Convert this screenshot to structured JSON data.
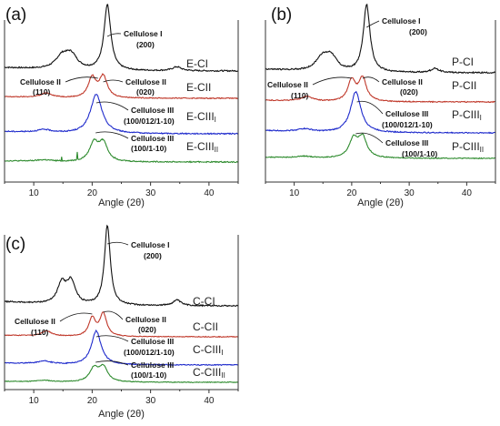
{
  "colors": {
    "CI": "#111111",
    "CII": "#c0392b",
    "CIIIi": "#1f2bcc",
    "CIIIii": "#2e8b2e",
    "axis": "#333333"
  },
  "chart_data": [
    {
      "type": "line",
      "panel": "(a)",
      "xlabel": "Angle (2θ)",
      "xlim": [
        5,
        45
      ],
      "xticks": [
        10,
        20,
        30,
        40
      ],
      "series": [
        {
          "name": "E-CI",
          "name_sub": "",
          "color_key": "CI",
          "peaks": [
            [
              14.8,
              0.18,
              1.3
            ],
            [
              16.4,
              0.22,
              1.3
            ],
            [
              22.6,
              1.0,
              0.7
            ],
            [
              34.5,
              0.06,
              0.9
            ]
          ],
          "baseline_left": 0.05,
          "noise": 0.01
        },
        {
          "name": "E-CII",
          "name_sub": "",
          "color_key": "CII",
          "peaks": [
            [
              12.2,
              0.12,
              1.2
            ],
            [
              20.0,
              0.55,
              0.8
            ],
            [
              21.9,
              0.58,
              0.8
            ]
          ],
          "baseline_left": 0.04,
          "noise": 0.012
        },
        {
          "name": "E-CIII",
          "name_sub": "I",
          "color_key": "CIIIi",
          "peaks": [
            [
              11.8,
              0.05,
              1.5
            ],
            [
              20.7,
              0.72,
              1.2
            ]
          ],
          "baseline_left": 0.04,
          "noise": 0.01
        },
        {
          "name": "E-CIII",
          "name_sub": "II",
          "color_key": "CIIIii",
          "peaks": [
            [
              11.8,
              0.04,
              1.5
            ],
            [
              20.3,
              0.5,
              0.9
            ],
            [
              21.9,
              0.5,
              0.9
            ]
          ],
          "baseline_left": 0.03,
          "noise": 0.015,
          "spikes": [
            [
              17.4,
              0.22
            ],
            [
              14.8,
              0.1
            ]
          ]
        }
      ],
      "annotations": [
        {
          "text": "Cellulose I",
          "text2": "(200)"
        },
        {
          "text": "Cellulose II",
          "text2": "(020)"
        },
        {
          "text": "Cellulose II",
          "text2": "(110)"
        },
        {
          "text": "Cellulose III",
          "text2": "(100/012/1-10)"
        },
        {
          "text": "Cellulose III",
          "text2": "(100/1-10)"
        }
      ]
    },
    {
      "type": "line",
      "panel": "(b)",
      "xlabel": "Angle (2θ)",
      "xlim": [
        5,
        45
      ],
      "xticks": [
        10,
        20,
        30,
        40
      ],
      "series": [
        {
          "name": "P-CI",
          "name_sub": "",
          "color_key": "CI",
          "peaks": [
            [
              14.8,
              0.18,
              1.3
            ],
            [
              16.4,
              0.22,
              1.3
            ],
            [
              22.6,
              1.0,
              0.7
            ],
            [
              34.5,
              0.06,
              0.9
            ]
          ],
          "baseline_left": 0.05,
          "noise": 0.01
        },
        {
          "name": "P-CII",
          "name_sub": "",
          "color_key": "CII",
          "peaks": [
            [
              12.2,
              0.12,
              1.2
            ],
            [
              20.0,
              0.55,
              0.8
            ],
            [
              21.9,
              0.6,
              0.8
            ]
          ],
          "baseline_left": 0.04,
          "noise": 0.012
        },
        {
          "name": "P-CIII",
          "name_sub": "I",
          "color_key": "CIIIi",
          "peaks": [
            [
              11.8,
              0.05,
              1.5
            ],
            [
              20.7,
              0.75,
              1.1
            ]
          ],
          "baseline_left": 0.04,
          "noise": 0.01
        },
        {
          "name": "P-CIII",
          "name_sub": "II",
          "color_key": "CIIIii",
          "peaks": [
            [
              11.8,
              0.04,
              1.5
            ],
            [
              20.3,
              0.5,
              0.9
            ],
            [
              21.9,
              0.55,
              0.9
            ]
          ],
          "baseline_left": 0.03,
          "noise": 0.012
        }
      ],
      "annotations": [
        {
          "text": "Cellulose I",
          "text2": "(200)"
        },
        {
          "text": "Cellulose II",
          "text2": "(020)"
        },
        {
          "text": "Cellulose II",
          "text2": "(110)"
        },
        {
          "text": "Cellulose III",
          "text2": "(100/012/1-10)"
        },
        {
          "text": "Cellulose III",
          "text2": "(100/1-10)"
        }
      ]
    },
    {
      "type": "line",
      "panel": "(c)",
      "xlabel": "Angle (2θ)",
      "xlim": [
        5,
        45
      ],
      "xticks": [
        10,
        20,
        30,
        40
      ],
      "series": [
        {
          "name": "C-CI",
          "name_sub": "",
          "color_key": "CI",
          "peaks": [
            [
              14.8,
              0.25,
              0.9
            ],
            [
              16.4,
              0.28,
              0.9
            ],
            [
              22.6,
              1.0,
              0.6
            ],
            [
              34.5,
              0.07,
              0.8
            ]
          ],
          "baseline_left": 0.05,
          "noise": 0.008
        },
        {
          "name": "C-CII",
          "name_sub": "",
          "color_key": "CII",
          "peaks": [
            [
              12.2,
              0.14,
              1.0
            ],
            [
              20.0,
              0.5,
              0.7
            ],
            [
              21.9,
              0.62,
              0.7
            ]
          ],
          "baseline_left": 0.04,
          "noise": 0.01
        },
        {
          "name": "C-CIII",
          "name_sub": "I",
          "color_key": "CIIIi",
          "peaks": [
            [
              11.8,
              0.06,
              1.4
            ],
            [
              20.7,
              0.72,
              1.0
            ]
          ],
          "baseline_left": 0.04,
          "noise": 0.01
        },
        {
          "name": "C-CIII",
          "name_sub": "II",
          "color_key": "CIIIii",
          "peaks": [
            [
              11.8,
              0.05,
              1.4
            ],
            [
              20.3,
              0.45,
              0.9
            ],
            [
              21.9,
              0.5,
              0.9
            ]
          ],
          "baseline_left": 0.03,
          "noise": 0.012
        }
      ],
      "annotations": [
        {
          "text": "Cellulose I",
          "text2": "(200)"
        },
        {
          "text": "Cellulose II",
          "text2": "(020)"
        },
        {
          "text": "Cellulose II",
          "text2": "(110)"
        },
        {
          "text": "Cellulose III",
          "text2": "(100/012/1-10)"
        },
        {
          "text": "Cellulose III",
          "text2": "(100/1-10)"
        }
      ]
    }
  ]
}
